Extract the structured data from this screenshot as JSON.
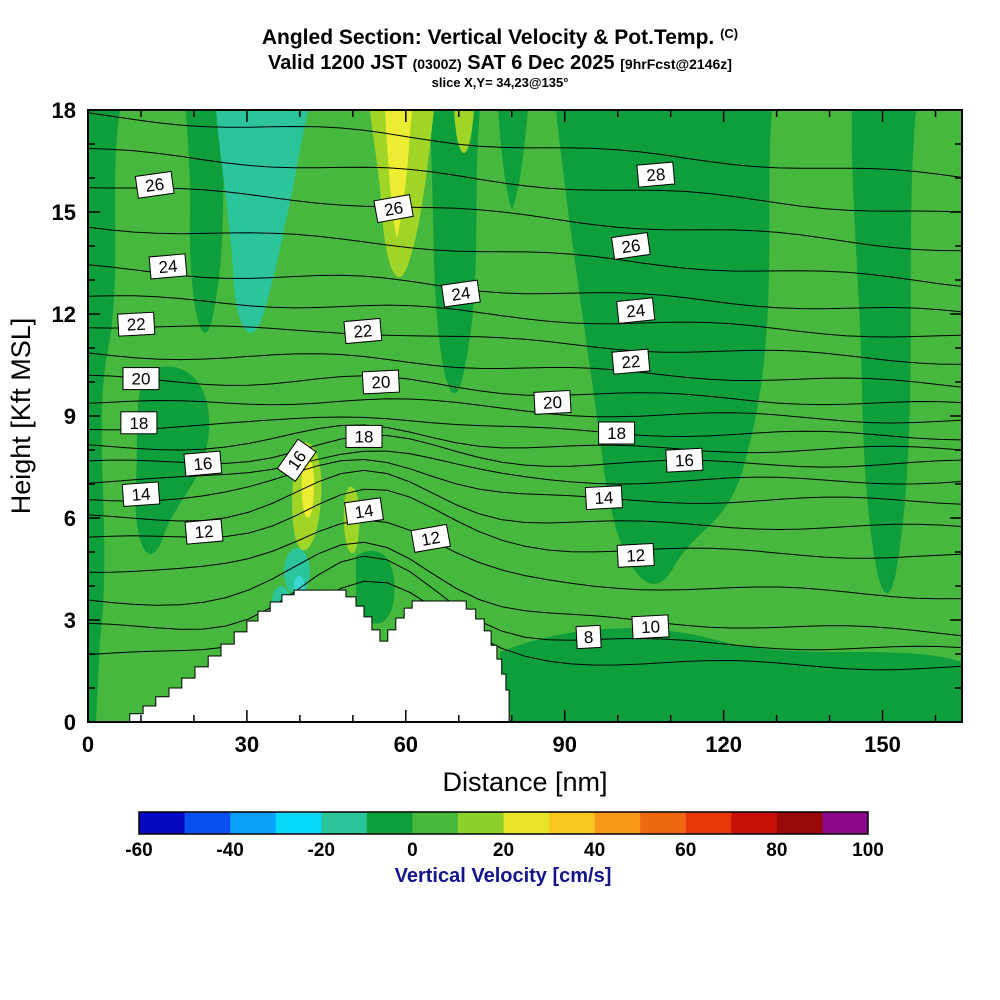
{
  "header": {
    "title": "Angled Section: Vertical Velocity & Pot.Temp.",
    "title_unit": "(C)",
    "valid": "Valid 1200 JST",
    "valid_z": "(0300Z)",
    "date": "SAT 6 Dec 2025",
    "fcst": "[9hrFcst@2146z]",
    "slice": "slice X,Y= 34,23@135°"
  },
  "axes": {
    "x_label": "Distance [nm]",
    "y_label": "Height [Kft MSL]",
    "x_ticks": [
      0,
      30,
      60,
      90,
      120,
      150
    ],
    "y_ticks": [
      0,
      3,
      6,
      9,
      12,
      15,
      18
    ],
    "x_minor_step": 10,
    "y_minor_step": 1,
    "x_range": [
      0,
      165
    ],
    "y_range": [
      0,
      18
    ]
  },
  "colorbar": {
    "label": "Vertical Velocity [cm/s]",
    "ticks": [
      -60,
      -40,
      -20,
      0,
      20,
      40,
      60,
      80,
      100
    ],
    "min": -60,
    "max": 100,
    "step": 10,
    "label_color": "#14148c",
    "colors": [
      "#0808c0",
      "#0850f0",
      "#08a0f8",
      "#08d8f8",
      "#2cc49a",
      "#0f9e3c",
      "#46b83e",
      "#8cd02c",
      "#e8e428",
      "#f8c820",
      "#f89818",
      "#f06810",
      "#e83808",
      "#c81008",
      "#980808",
      "#8c0888"
    ]
  },
  "chart_data": {
    "type": "heatmap",
    "title": "Angled Section: Vertical Velocity & Pot.Temp. (C)",
    "subtitle": "Valid 1200 JST (0300Z) SAT 6 Dec 2025 [9hrFcst@2146z] — slice X,Y= 34,23@135°",
    "xlabel": "Distance [nm]",
    "ylabel": "Height [Kft MSL]",
    "xlim": [
      0,
      165
    ],
    "ylim": [
      0,
      18
    ],
    "fill_variable": "Vertical Velocity [cm/s]",
    "fill_levels_min": -60,
    "fill_levels_max": 100,
    "fill_levels_step": 10,
    "fill_summary": "Field is mostly 0 to 10 cm/s (green) with broad -10 to 0 cm/s (dark green) columns; a -20 to -10 cm/s (teal) band near x=25-40 nm aloft; 10-30 cm/s updraft streaks (yellow-green/yellow) near x=53-65 nm aloft and on the windward slope near x=40 nm at 5-8 kft; weak downdraft pocket in the lee below 3 kft.",
    "contour_variable": "Potential Temperature (C)",
    "contour_interval": 1,
    "contour_label_interval": 2,
    "isentropes": [
      {
        "level": 8,
        "left": 2.0,
        "right": 1.6,
        "wave": 2.3
      },
      {
        "level": 9,
        "left": 2.8,
        "right": 2.1,
        "wave": 2.2
      },
      {
        "level": 10,
        "left": 3.6,
        "right": 2.6,
        "wave": 2.0
      },
      {
        "level": 11,
        "left": 4.5,
        "right": 3.7,
        "wave": 1.8
      },
      {
        "level": 12,
        "left": 5.4,
        "right": 4.85,
        "wave": 1.6
      },
      {
        "level": 13,
        "left": 6.0,
        "right": 5.7,
        "wave": 1.4
      },
      {
        "level": 14,
        "left": 6.6,
        "right": 6.5,
        "wave": 1.2
      },
      {
        "level": 15,
        "left": 7.1,
        "right": 7.1,
        "wave": 0.95
      },
      {
        "level": 16,
        "left": 7.6,
        "right": 7.6,
        "wave": 0.76
      },
      {
        "level": 17,
        "left": 8.1,
        "right": 8.0,
        "wave": 0.6
      },
      {
        "level": 18,
        "left": 8.7,
        "right": 8.4,
        "wave": 0.44
      },
      {
        "level": 19,
        "left": 9.4,
        "right": 8.85,
        "wave": 0.3
      },
      {
        "level": 20,
        "left": 10.1,
        "right": 9.3,
        "wave": 0.24
      },
      {
        "level": 21,
        "left": 10.85,
        "right": 9.9,
        "wave": 0.18
      },
      {
        "level": 22,
        "left": 11.7,
        "right": 10.6,
        "wave": 0.15
      },
      {
        "level": 23,
        "left": 12.5,
        "right": 11.3,
        "wave": 0.12
      },
      {
        "level": 24,
        "left": 13.35,
        "right": 12.0,
        "wave": 0.09
      },
      {
        "level": 25,
        "left": 14.6,
        "right": 12.9,
        "wave": 0.09
      },
      {
        "level": 26,
        "left": 15.8,
        "right": 13.9,
        "wave": 0.06
      },
      {
        "level": 27,
        "left": 16.8,
        "right": 14.9,
        "wave": 0.06
      },
      {
        "level": 28,
        "left": 17.85,
        "right": 16.0,
        "wave": 0.06
      }
    ],
    "contour_labels": [
      {
        "value": 26,
        "nm": 12.6,
        "kft": 15.8,
        "rot": -8
      },
      {
        "value": 24,
        "nm": 15.1,
        "kft": 13.4,
        "rot": -5
      },
      {
        "value": 22,
        "nm": 9.1,
        "kft": 11.7,
        "rot": -3
      },
      {
        "value": 20,
        "nm": 10.0,
        "kft": 10.1,
        "rot": 0
      },
      {
        "value": 18,
        "nm": 9.6,
        "kft": 8.8,
        "rot": 0
      },
      {
        "value": 16,
        "nm": 21.7,
        "kft": 7.6,
        "rot": -5
      },
      {
        "value": 14,
        "nm": 10.0,
        "kft": 6.7,
        "rot": -4
      },
      {
        "value": 12,
        "nm": 21.9,
        "kft": 5.6,
        "rot": -5
      },
      {
        "value": 26,
        "nm": 57.7,
        "kft": 15.1,
        "rot": -10
      },
      {
        "value": 24,
        "nm": 70.4,
        "kft": 12.6,
        "rot": -8
      },
      {
        "value": 22,
        "nm": 51.9,
        "kft": 11.5,
        "rot": -5
      },
      {
        "value": 20,
        "nm": 55.3,
        "kft": 10.0,
        "rot": -3
      },
      {
        "value": 18,
        "nm": 52.1,
        "kft": 8.4,
        "rot": 0
      },
      {
        "value": 16,
        "nm": 39.4,
        "kft": 7.7,
        "rot": -55
      },
      {
        "value": 14,
        "nm": 52.1,
        "kft": 6.2,
        "rot": -8
      },
      {
        "value": 12,
        "nm": 64.7,
        "kft": 5.4,
        "rot": -10
      },
      {
        "value": 28,
        "nm": 107.2,
        "kft": 16.1,
        "rot": -5
      },
      {
        "value": 26,
        "nm": 102.5,
        "kft": 14.0,
        "rot": -8
      },
      {
        "value": 24,
        "nm": 103.4,
        "kft": 12.1,
        "rot": -6
      },
      {
        "value": 22,
        "nm": 102.5,
        "kft": 10.6,
        "rot": -5
      },
      {
        "value": 20,
        "nm": 87.7,
        "kft": 9.4,
        "rot": -3
      },
      {
        "value": 18,
        "nm": 99.8,
        "kft": 8.5,
        "rot": 0
      },
      {
        "value": 16,
        "nm": 112.6,
        "kft": 7.7,
        "rot": -3
      },
      {
        "value": 14,
        "nm": 97.4,
        "kft": 6.6,
        "rot": -3
      },
      {
        "value": 12,
        "nm": 103.4,
        "kft": 4.9,
        "rot": -3
      },
      {
        "value": 10,
        "nm": 106.2,
        "kft": 2.8,
        "rot": -3
      },
      {
        "value": 8,
        "nm": 94.5,
        "kft": 2.5,
        "rot": -3
      }
    ],
    "terrain": {
      "units": [
        "nm",
        "kft"
      ],
      "start_nm": 7.9,
      "steps": [
        [
          10.4,
          0.24
        ],
        [
          12.8,
          0.47
        ],
        [
          15.3,
          0.74
        ],
        [
          17.7,
          1.0
        ],
        [
          20.2,
          1.29
        ],
        [
          22.7,
          1.62
        ],
        [
          25.1,
          1.94
        ],
        [
          27.6,
          2.29
        ],
        [
          30.0,
          2.65
        ],
        [
          32.1,
          2.97
        ],
        [
          34.4,
          3.26
        ],
        [
          36.6,
          3.53
        ],
        [
          38.9,
          3.74
        ],
        [
          48.7,
          3.88
        ],
        [
          50.6,
          3.68
        ],
        [
          52.1,
          3.41
        ],
        [
          53.6,
          3.09
        ],
        [
          55.1,
          2.71
        ],
        [
          56.6,
          2.38
        ],
        [
          58.1,
          2.71
        ],
        [
          59.7,
          3.06
        ],
        [
          61.2,
          3.35
        ],
        [
          62.7,
          3.56
        ],
        [
          71.4,
          3.56
        ],
        [
          73.2,
          3.32
        ],
        [
          74.8,
          3.03
        ],
        [
          76.1,
          2.68
        ],
        [
          77.2,
          2.26
        ],
        [
          78.1,
          1.85
        ],
        [
          78.9,
          1.41
        ],
        [
          79.5,
          0.94
        ]
      ]
    }
  }
}
